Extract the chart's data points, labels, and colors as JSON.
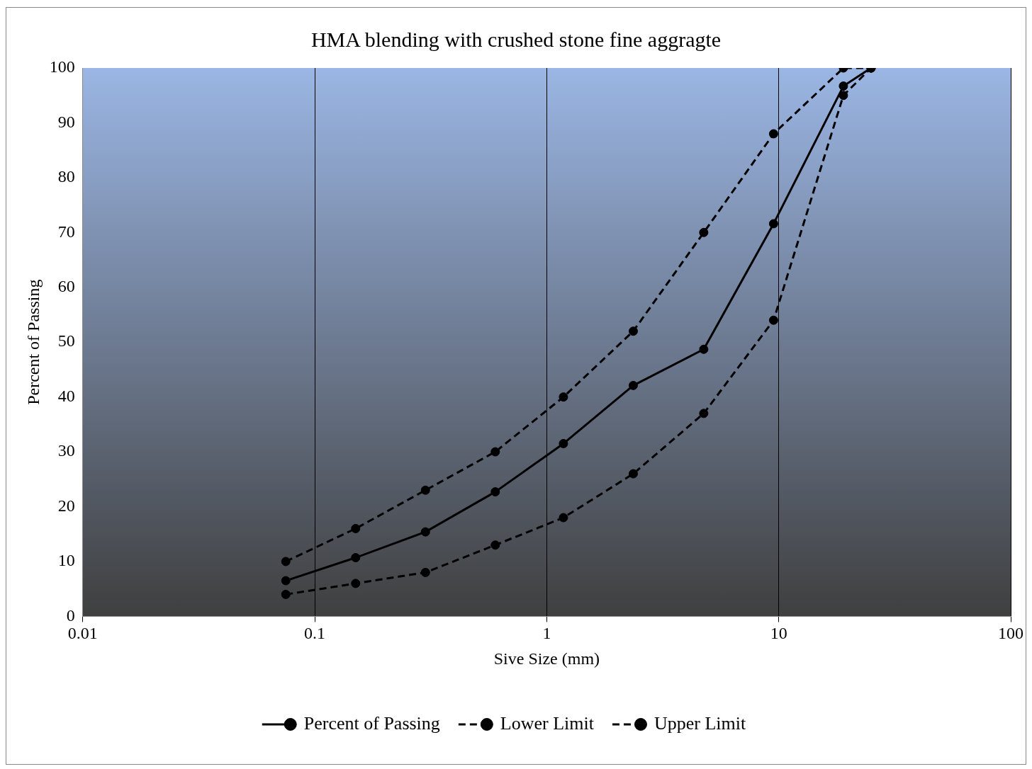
{
  "chart_data": {
    "type": "line",
    "title": "HMA blending with crushed stone fine aggragte",
    "xlabel": "Sive Size (mm)",
    "ylabel": "Percent of Passing",
    "x": [
      0.075,
      0.15,
      0.3,
      0.6,
      1.18,
      2.36,
      4.75,
      9.5,
      19,
      25
    ],
    "series": [
      {
        "name": "Percent of Passing",
        "color": "#000000",
        "line_style": "solid",
        "values": [
          6.5,
          10.7,
          15.4,
          22.7,
          31.5,
          42.1,
          48.7,
          71.6,
          96.7,
          100
        ]
      },
      {
        "name": "Lower Limit",
        "color": "#000000",
        "line_style": "dashed",
        "values": [
          4,
          6,
          8,
          13,
          18,
          26,
          37,
          54,
          95,
          100
        ]
      },
      {
        "name": "Upper Limit",
        "color": "#000000",
        "line_style": "dashed",
        "values": [
          10,
          16,
          23,
          30,
          40,
          52,
          70,
          88,
          100,
          100
        ]
      }
    ],
    "log": "x",
    "xlim": [
      0.01,
      100
    ],
    "xticks": [
      0.01,
      0.1,
      1,
      10,
      100
    ],
    "ylim": [
      0,
      100
    ],
    "yticks": [
      0,
      10,
      20,
      30,
      40,
      50,
      60,
      70,
      80,
      90,
      100
    ],
    "grid": "x",
    "legend": "bottom",
    "marker": "circle"
  }
}
